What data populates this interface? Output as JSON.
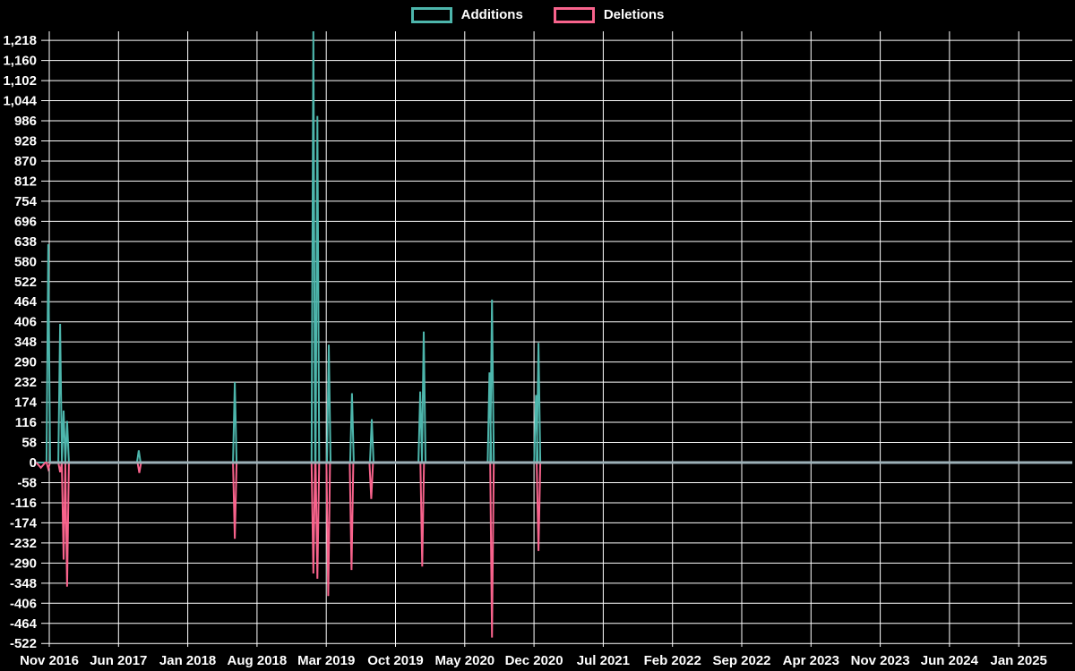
{
  "legend": {
    "items": [
      {
        "label": "Additions",
        "color": "#4db6ac"
      },
      {
        "label": "Deletions",
        "color": "#f8638c"
      }
    ]
  },
  "chart_data": {
    "type": "line",
    "title": "",
    "legend_position": "top-center",
    "grid": true,
    "background": "#000000",
    "grid_color": "#ffffff",
    "text_color": "#ffffff",
    "zero_line_color": "#9db1b8",
    "ylim": [
      -522,
      1218
    ],
    "y_tick_step": 58,
    "y_ticks": [
      1218,
      1160,
      1102,
      1044,
      986,
      928,
      870,
      812,
      754,
      696,
      638,
      580,
      522,
      464,
      406,
      348,
      290,
      232,
      174,
      116,
      58,
      0,
      -58,
      -116,
      -174,
      -232,
      -290,
      -348,
      -406,
      -464,
      -522
    ],
    "x_ticks": [
      "Nov 2016",
      "Jun 2017",
      "Jan 2018",
      "Aug 2018",
      "Mar 2019",
      "Oct 2019",
      "May 2020",
      "Dec 2020",
      "Jul 2021",
      "Feb 2022",
      "Sep 2022",
      "Apr 2023",
      "Nov 2023",
      "Jun 2024",
      "Jan 2025"
    ],
    "x_tick_interval_months": 7,
    "series": [
      {
        "name": "Additions",
        "color": "#4db6ac",
        "spikes": [
          {
            "date": "2016-11",
            "m": -0.1,
            "v": 630
          },
          {
            "date": "2016-12",
            "m": 1.1,
            "v": 400
          },
          {
            "date": "2016-12",
            "m": 1.45,
            "v": 150
          },
          {
            "date": "2017-01",
            "m": 1.8,
            "v": 120
          },
          {
            "date": "2017-08",
            "m": 9.05,
            "v": 35
          },
          {
            "date": "2018-06",
            "m": 18.75,
            "v": 232
          },
          {
            "date": "2019-01",
            "m": 26.7,
            "v": 1250,
            "clipped": true
          },
          {
            "date": "2019-02",
            "m": 27.1,
            "v": 1000
          },
          {
            "date": "2019-03",
            "m": 28.25,
            "v": 340
          },
          {
            "date": "2019-05",
            "m": 30.6,
            "v": 200
          },
          {
            "date": "2019-07",
            "m": 32.6,
            "v": 125
          },
          {
            "date": "2019-12",
            "m": 37.5,
            "v": 205
          },
          {
            "date": "2020-01",
            "m": 37.85,
            "v": 378
          },
          {
            "date": "2020-07",
            "m": 44.5,
            "v": 260
          },
          {
            "date": "2020-08",
            "m": 44.75,
            "v": 470
          },
          {
            "date": "2020-12",
            "m": 49.2,
            "v": 195
          },
          {
            "date": "2021-01",
            "m": 49.45,
            "v": 345
          }
        ]
      },
      {
        "name": "Deletions",
        "color": "#f8638c",
        "spikes": [
          {
            "date": "2016-10",
            "m": -0.85,
            "v": -15,
            "hw": 5
          },
          {
            "date": "2016-11",
            "m": -0.1,
            "v": -18
          },
          {
            "date": "2016-12",
            "m": 1.1,
            "v": -28
          },
          {
            "date": "2016-12",
            "m": 1.45,
            "v": -280
          },
          {
            "date": "2017-01",
            "m": 1.8,
            "v": -358
          },
          {
            "date": "2017-08",
            "m": 9.1,
            "v": -30
          },
          {
            "date": "2018-06",
            "m": 18.75,
            "v": -220
          },
          {
            "date": "2019-01",
            "m": 26.7,
            "v": -320
          },
          {
            "date": "2019-02",
            "m": 27.1,
            "v": -335
          },
          {
            "date": "2019-03",
            "m": 28.2,
            "v": -385
          },
          {
            "date": "2019-05",
            "m": 30.55,
            "v": -310
          },
          {
            "date": "2019-07",
            "m": 32.55,
            "v": -105
          },
          {
            "date": "2019-12",
            "m": 37.7,
            "v": -300
          },
          {
            "date": "2020-08",
            "m": 44.75,
            "v": -505
          },
          {
            "date": "2021-01",
            "m": 49.45,
            "v": -255
          }
        ]
      }
    ]
  }
}
